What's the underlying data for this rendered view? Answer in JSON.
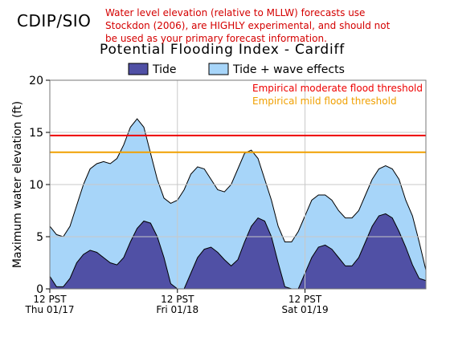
{
  "header": {
    "brand": "CDIP/SIO",
    "disclaimer_lines": [
      "Water level elevation (relative to MLLW) forecasts use",
      "Stockdon (2006), are HIGHLY experimental, and should not",
      "be used as your primary forecast information."
    ]
  },
  "chart_data": {
    "type": "area",
    "title": "Potential Flooding Index - Cardiff",
    "xlabel": "",
    "ylabel": "Maximum water elevation (ft)",
    "ylim": [
      0,
      20
    ],
    "yticks": [
      0,
      5,
      10,
      15,
      20
    ],
    "grid": true,
    "legend_position": "top",
    "x_hours_range": [
      0,
      56
    ],
    "xticks": [
      {
        "hours": 0,
        "line1": "12 PST",
        "line2": "Thu 01/17"
      },
      {
        "hours": 19,
        "line1": "12 PST",
        "line2": "Fri 01/18"
      },
      {
        "hours": 38,
        "line1": "12 PST",
        "line2": "Sat 01/19"
      }
    ],
    "series": [
      {
        "name": "Tide + wave effects",
        "color": "#a7d5f9",
        "points": [
          [
            0,
            6.0
          ],
          [
            1,
            5.2
          ],
          [
            2,
            5.0
          ],
          [
            3,
            6.0
          ],
          [
            4,
            8.0
          ],
          [
            5,
            10.0
          ],
          [
            6,
            11.5
          ],
          [
            7,
            12.0
          ],
          [
            8,
            12.2
          ],
          [
            9,
            12.0
          ],
          [
            10,
            12.5
          ],
          [
            11,
            13.8
          ],
          [
            12,
            15.5
          ],
          [
            13,
            16.3
          ],
          [
            14,
            15.5
          ],
          [
            15,
            13.0
          ],
          [
            16,
            10.5
          ],
          [
            17,
            8.7
          ],
          [
            18,
            8.2
          ],
          [
            19,
            8.5
          ],
          [
            20,
            9.5
          ],
          [
            21,
            11.0
          ],
          [
            22,
            11.7
          ],
          [
            23,
            11.5
          ],
          [
            24,
            10.5
          ],
          [
            25,
            9.5
          ],
          [
            26,
            9.3
          ],
          [
            27,
            10.0
          ],
          [
            28,
            11.5
          ],
          [
            29,
            13.0
          ],
          [
            30,
            13.3
          ],
          [
            31,
            12.5
          ],
          [
            32,
            10.5
          ],
          [
            33,
            8.5
          ],
          [
            34,
            6.0
          ],
          [
            35,
            4.5
          ],
          [
            36,
            4.5
          ],
          [
            37,
            5.5
          ],
          [
            38,
            7.0
          ],
          [
            39,
            8.5
          ],
          [
            40,
            9.0
          ],
          [
            41,
            9.0
          ],
          [
            42,
            8.5
          ],
          [
            43,
            7.5
          ],
          [
            44,
            6.8
          ],
          [
            45,
            6.8
          ],
          [
            46,
            7.5
          ],
          [
            47,
            9.0
          ],
          [
            48,
            10.5
          ],
          [
            49,
            11.5
          ],
          [
            50,
            11.8
          ],
          [
            51,
            11.5
          ],
          [
            52,
            10.5
          ],
          [
            53,
            8.5
          ],
          [
            54,
            7.0
          ],
          [
            55,
            4.5
          ],
          [
            56,
            1.8
          ]
        ]
      },
      {
        "name": "Tide",
        "color": "#5050a5",
        "points": [
          [
            0,
            1.2
          ],
          [
            1,
            0.2
          ],
          [
            2,
            0.2
          ],
          [
            3,
            1.0
          ],
          [
            4,
            2.5
          ],
          [
            5,
            3.3
          ],
          [
            6,
            3.7
          ],
          [
            7,
            3.5
          ],
          [
            8,
            3.0
          ],
          [
            9,
            2.5
          ],
          [
            10,
            2.3
          ],
          [
            11,
            3.0
          ],
          [
            12,
            4.5
          ],
          [
            13,
            5.8
          ],
          [
            14,
            6.5
          ],
          [
            15,
            6.3
          ],
          [
            16,
            5.0
          ],
          [
            17,
            3.0
          ],
          [
            18,
            0.5
          ],
          [
            19,
            0
          ],
          [
            20,
            0
          ],
          [
            21,
            1.5
          ],
          [
            22,
            3.0
          ],
          [
            23,
            3.8
          ],
          [
            24,
            4.0
          ],
          [
            25,
            3.5
          ],
          [
            26,
            2.8
          ],
          [
            27,
            2.2
          ],
          [
            28,
            2.8
          ],
          [
            29,
            4.5
          ],
          [
            30,
            6.0
          ],
          [
            31,
            6.8
          ],
          [
            32,
            6.5
          ],
          [
            33,
            5.0
          ],
          [
            34,
            2.5
          ],
          [
            35,
            0.2
          ],
          [
            36,
            0
          ],
          [
            37,
            0
          ],
          [
            38,
            1.5
          ],
          [
            39,
            3.0
          ],
          [
            40,
            4.0
          ],
          [
            41,
            4.2
          ],
          [
            42,
            3.8
          ],
          [
            43,
            3.0
          ],
          [
            44,
            2.2
          ],
          [
            45,
            2.2
          ],
          [
            46,
            3.0
          ],
          [
            47,
            4.5
          ],
          [
            48,
            6.0
          ],
          [
            49,
            7.0
          ],
          [
            50,
            7.2
          ],
          [
            51,
            6.8
          ],
          [
            52,
            5.5
          ],
          [
            53,
            4.0
          ],
          [
            54,
            2.3
          ],
          [
            55,
            1.0
          ],
          [
            56,
            0.8
          ]
        ]
      }
    ],
    "thresholds": [
      {
        "name": "Empirical moderate flood threshold",
        "value": 14.7,
        "color": "#ee0000"
      },
      {
        "name": "Empirical mild flood threshold",
        "value": 13.1,
        "color": "#f0a000"
      }
    ]
  }
}
